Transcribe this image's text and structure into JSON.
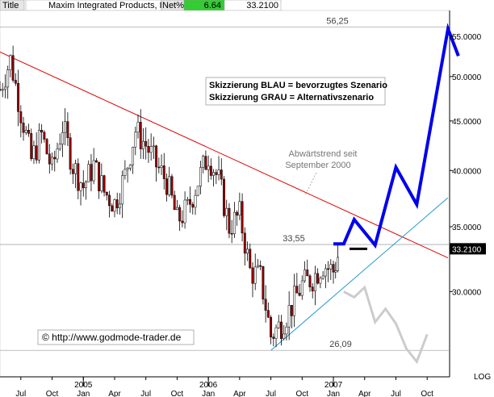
{
  "header": {
    "title_label": "Title",
    "instrument": "Maxim Integrated Products, Inc.",
    "net_label": "Net%",
    "net_value": "6.64",
    "last_price": "33.2100",
    "net_color": "#33cc33"
  },
  "chart_data": {
    "type": "candlestick",
    "y_scale": "log",
    "ylim": [
      24.5,
      58.5
    ],
    "y_ticks": [
      "30.0000",
      "35.0000",
      "40.0000",
      "45.0000",
      "50.0000",
      "55.0000"
    ],
    "y_tick_values": [
      30,
      35,
      40,
      45,
      50,
      55
    ],
    "y_axis_label": "LOG",
    "current_price_label": "33.2100",
    "current_price": 33.21,
    "x_ticks": [
      "Jul",
      "Oct",
      "Jan",
      "Apr",
      "Jul",
      "Oct",
      "Jan",
      "Apr",
      "Jul",
      "Oct",
      "Jan",
      "Apr",
      "Jul",
      "Oct"
    ],
    "x_tick_dates": [
      "2004-07",
      "2004-10",
      "2005-01",
      "2005-04",
      "2005-07",
      "2005-10",
      "2006-01",
      "2006-04",
      "2006-07",
      "2006-10",
      "2007-01",
      "2007-04",
      "2007-07",
      "2007-10"
    ],
    "x_year_labels": [
      "2005",
      "2006",
      "2007"
    ],
    "x_year_dates": [
      "2005-01",
      "2006-01",
      "2007-01"
    ],
    "x_range": [
      "2004-05",
      "2007-12"
    ],
    "horizontal_levels": [
      {
        "label": "56,25",
        "value": 56.25,
        "color": "#999999"
      },
      {
        "label": "33,55",
        "value": 33.55,
        "color": "#999999"
      },
      {
        "label": "26,09",
        "value": 26.09,
        "color": "#999999"
      }
    ],
    "legend_box": {
      "lines": [
        "Skizzierung BLAU = bevorzugtes Szenario",
        "Skizzierung GRAU = Alternativszenario"
      ]
    },
    "annotation": {
      "lines": [
        "Abwärtstrend seit",
        "September 2000"
      ]
    },
    "copyright": "© http://www.godmode-trader.de",
    "downtrend_line": {
      "color": "#dd0000",
      "points": [
        [
          "2004-05",
          53.0
        ],
        [
          "2007-12",
          32.5
        ]
      ]
    },
    "uptrend_line": {
      "color": "#2299cc",
      "points": [
        [
          "2006-07",
          26.09
        ],
        [
          "2007-12",
          37.5
        ]
      ]
    },
    "blue_scenario": {
      "color": "#0000ee",
      "points": [
        [
          "2007-01",
          33.6
        ],
        [
          "2007-02",
          33.6
        ],
        [
          "2007-03",
          35.6
        ],
        [
          "2007-05",
          33.5
        ],
        [
          "2007-07",
          40.3
        ],
        [
          "2007-09",
          36.9
        ],
        [
          "2007-12",
          56.0
        ],
        [
          "2008-01",
          52.5
        ]
      ]
    },
    "gray_scenario": {
      "color": "#cccccc",
      "points": [
        [
          "2007-02",
          30.0
        ],
        [
          "2007-03",
          29.6
        ],
        [
          "2007-04",
          30.3
        ],
        [
          "2007-05",
          27.9
        ],
        [
          "2007-06",
          28.8
        ],
        [
          "2007-07",
          27.8
        ],
        [
          "2007-08",
          26.2
        ],
        [
          "2007-09",
          25.4
        ],
        [
          "2007-10",
          27.1
        ]
      ]
    },
    "price_series": {
      "candle_color": "#990000",
      "anchors": [
        [
          "2004-05",
          48.5
        ],
        [
          "2004-06",
          52.0
        ],
        [
          "2004-07",
          46.0
        ],
        [
          "2004-08",
          41.0
        ],
        [
          "2004-09",
          43.5
        ],
        [
          "2004-10",
          40.0
        ],
        [
          "2004-11",
          44.5
        ],
        [
          "2004-12",
          40.5
        ],
        [
          "2005-01",
          38.5
        ],
        [
          "2005-02",
          40.5
        ],
        [
          "2005-03",
          38.0
        ],
        [
          "2005-04",
          37.0
        ],
        [
          "2005-05",
          39.5
        ],
        [
          "2005-06",
          44.0
        ],
        [
          "2005-07",
          42.5
        ],
        [
          "2005-08",
          40.5
        ],
        [
          "2005-09",
          39.0
        ],
        [
          "2005-10",
          35.5
        ],
        [
          "2005-11",
          36.5
        ],
        [
          "2005-12",
          39.0
        ],
        [
          "2006-01",
          41.5
        ],
        [
          "2006-02",
          39.0
        ],
        [
          "2006-03",
          35.0
        ],
        [
          "2006-04",
          36.0
        ],
        [
          "2006-05",
          31.5
        ],
        [
          "2006-06",
          31.0
        ],
        [
          "2006-07",
          27.0
        ],
        [
          "2006-08",
          27.8
        ],
        [
          "2006-09",
          29.0
        ],
        [
          "2006-10",
          30.5
        ],
        [
          "2006-11",
          31.0
        ],
        [
          "2006-12",
          32.0
        ],
        [
          "2007-01",
          31.5
        ],
        [
          "2007-01-20",
          33.2
        ]
      ]
    }
  }
}
